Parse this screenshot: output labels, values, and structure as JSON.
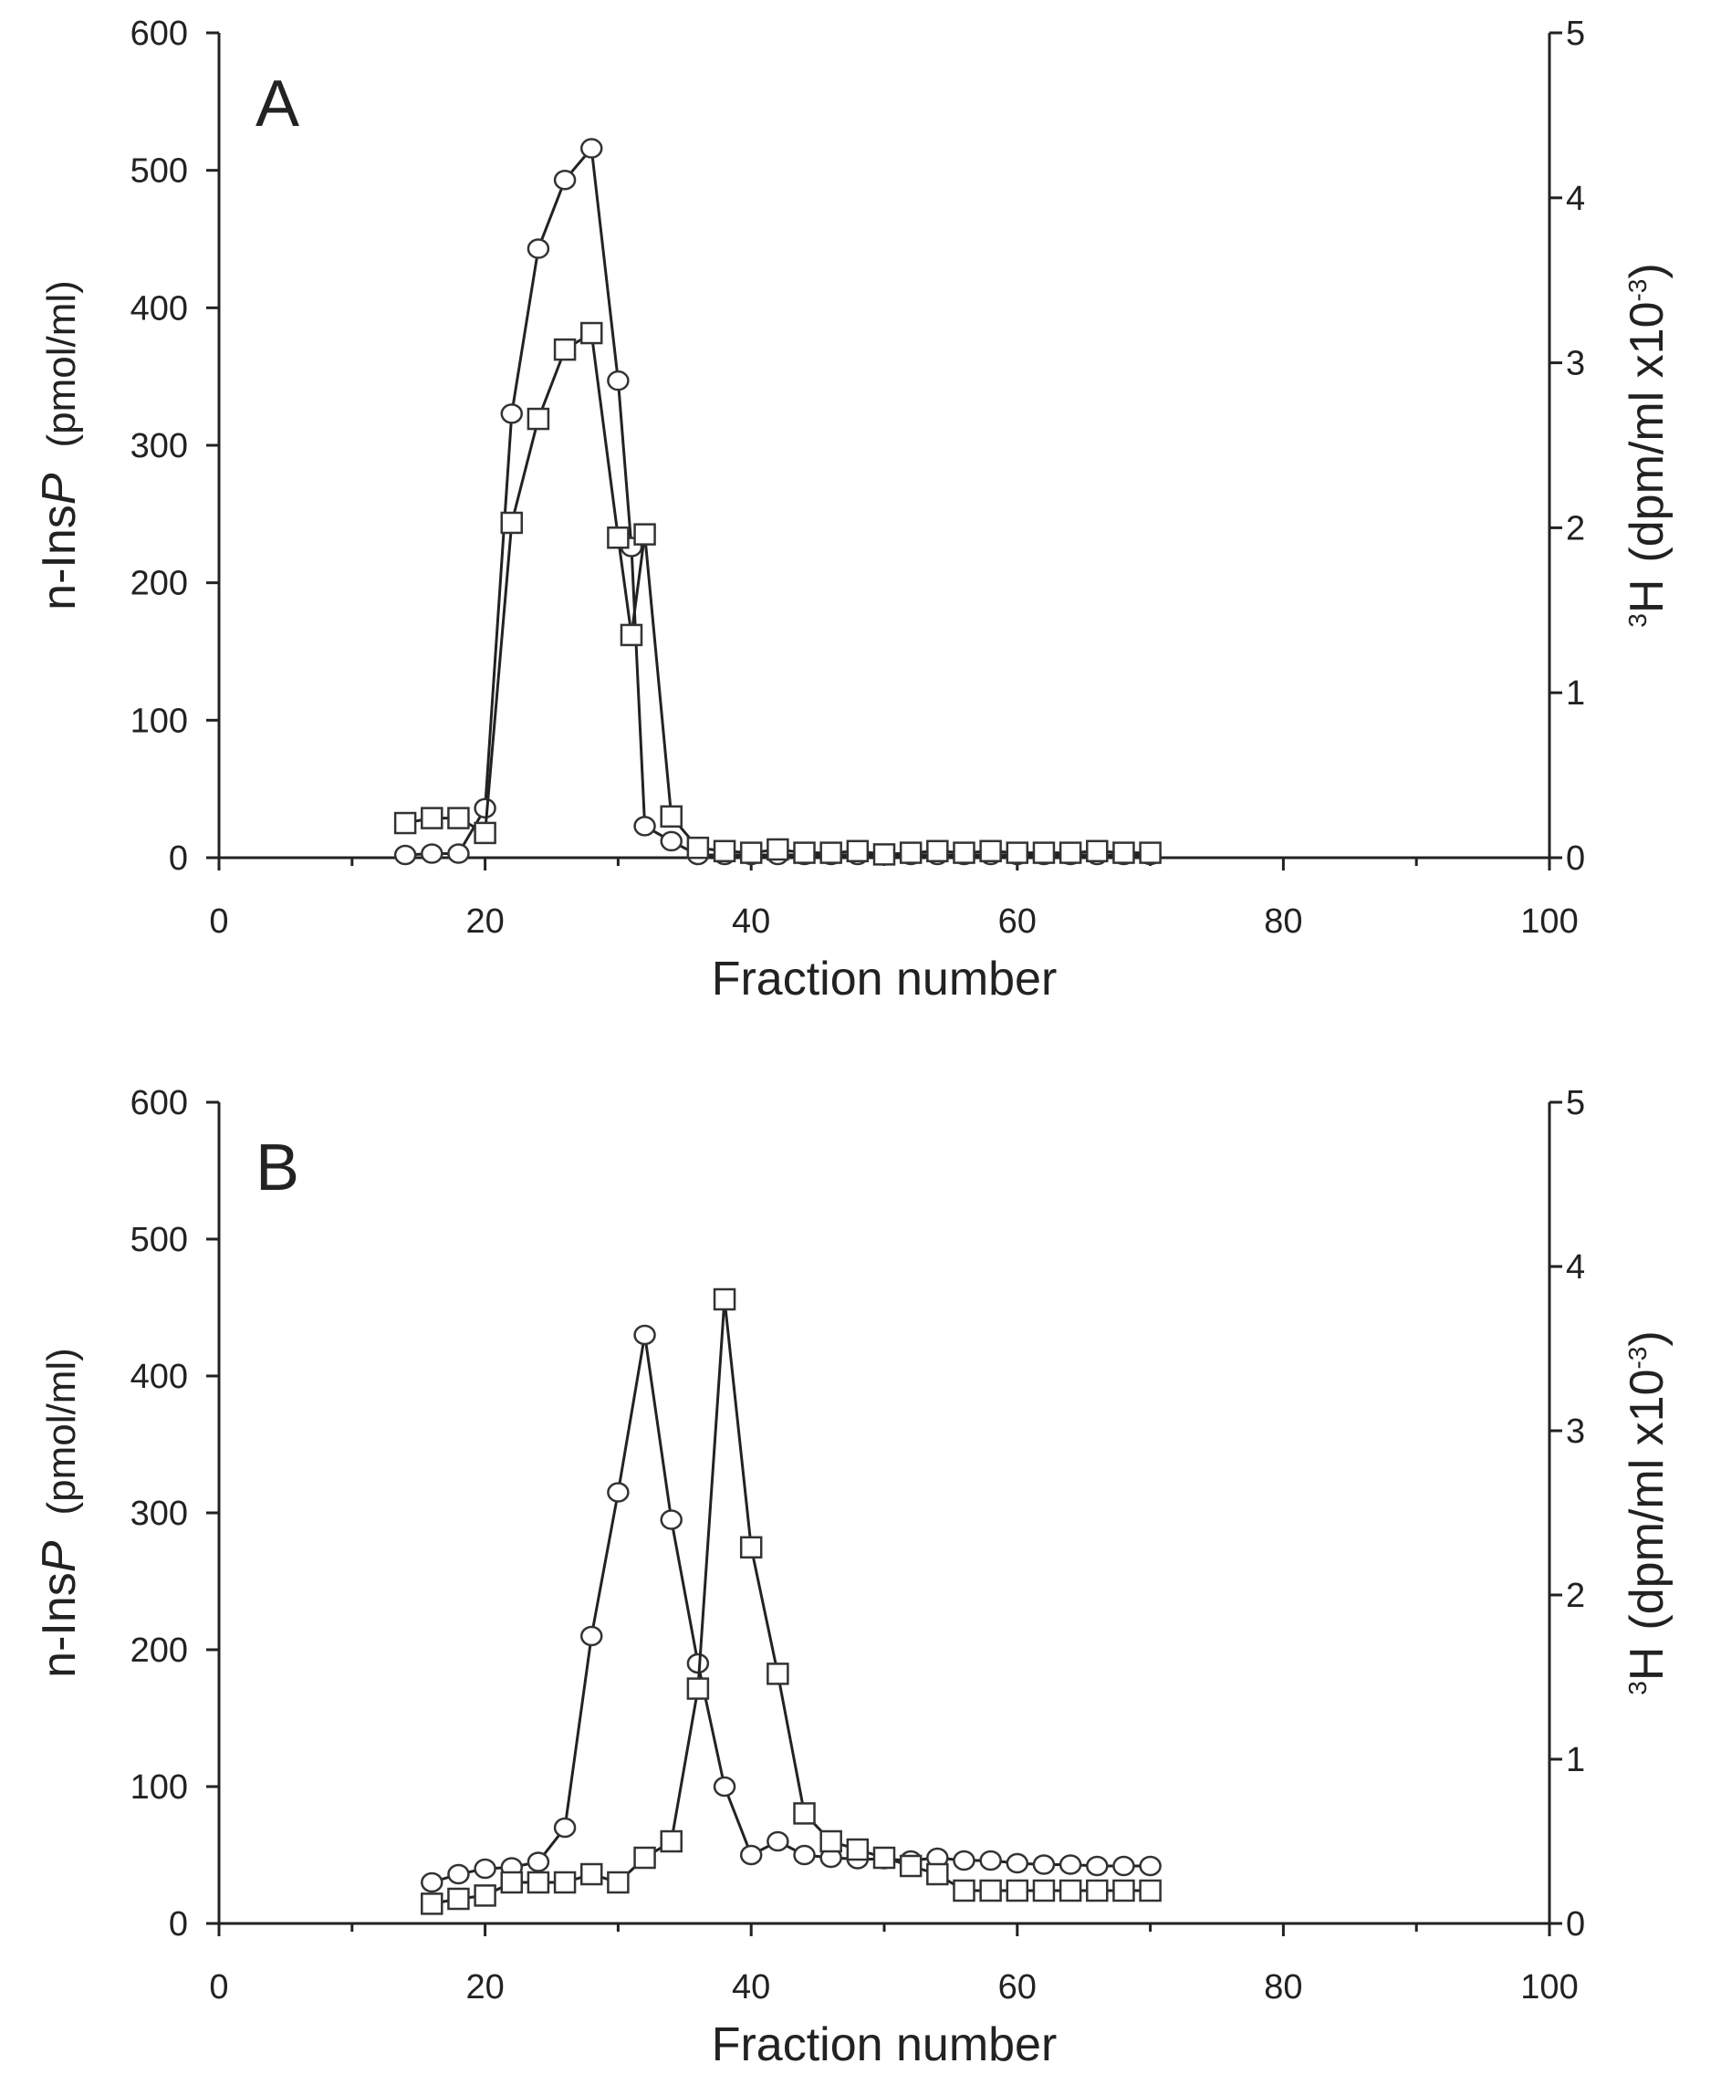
{
  "chart_data": [
    {
      "type": "line",
      "panel_label": "A",
      "xlabel": "Fraction number",
      "ylabel_left_prefix": "n-Ins",
      "ylabel_left_italic": "P",
      "ylabel_left_unit": "(pmol/ml)",
      "ylabel_right_sup": "3",
      "ylabel_right_main": "H",
      "ylabel_right_unit": "(dpm/ml x10",
      "ylabel_right_unit_sup": "-3",
      "ylabel_right_close": ")",
      "xlim": [
        0,
        100
      ],
      "ylim_left": [
        0,
        600
      ],
      "ylim_right": [
        0,
        5
      ],
      "x_ticks": [
        0,
        20,
        40,
        60,
        80,
        100
      ],
      "x_tick_labels": [
        "0",
        "20",
        "40",
        "60",
        "80",
        "100"
      ],
      "y_left_ticks": [
        0,
        100,
        200,
        300,
        400,
        500,
        600
      ],
      "y_left_tick_labels": [
        "0",
        "100",
        "200",
        "300",
        "400",
        "500",
        "600"
      ],
      "y_right_ticks": [
        0,
        1,
        2,
        3,
        4,
        5
      ],
      "y_right_tick_labels": [
        "0",
        "1",
        "2",
        "3",
        "4",
        "5"
      ],
      "series": [
        {
          "name": "n-InsP",
          "marker": "circle",
          "axis": "left",
          "x": [
            14,
            16,
            18,
            20,
            22,
            24,
            26,
            28,
            30,
            31,
            32,
            34,
            36,
            38,
            40,
            42,
            44,
            46,
            48,
            50,
            52,
            54,
            56,
            58,
            60,
            62,
            64,
            66,
            68,
            70
          ],
          "y": [
            2,
            3,
            3,
            36,
            323,
            443,
            493,
            516,
            347,
            226,
            23,
            12,
            2,
            2,
            2,
            2,
            2,
            2,
            2,
            2,
            2,
            2,
            2,
            2,
            2,
            2,
            2,
            2,
            2,
            2
          ]
        },
        {
          "name": "3H",
          "marker": "square",
          "axis": "right",
          "x": [
            14,
            16,
            18,
            20,
            22,
            24,
            26,
            28,
            30,
            31,
            32,
            34,
            36,
            38,
            40,
            42,
            44,
            46,
            48,
            50,
            52,
            54,
            56,
            58,
            60,
            62,
            64,
            66,
            68,
            70
          ],
          "y": [
            0.21,
            0.24,
            0.24,
            0.15,
            2.03,
            2.66,
            3.08,
            3.18,
            1.94,
            1.35,
            1.96,
            0.25,
            0.06,
            0.04,
            0.03,
            0.05,
            0.03,
            0.03,
            0.04,
            0.02,
            0.03,
            0.04,
            0.03,
            0.04,
            0.03,
            0.03,
            0.03,
            0.04,
            0.03,
            0.03
          ]
        }
      ]
    },
    {
      "type": "line",
      "panel_label": "B",
      "xlabel": "Fraction number",
      "ylabel_left_prefix": "n-Ins",
      "ylabel_left_italic": "P",
      "ylabel_left_unit": "(pmol/ml)",
      "ylabel_right_sup": "3",
      "ylabel_right_main": "H",
      "ylabel_right_unit": "(dpm/ml x10",
      "ylabel_right_unit_sup": "-3",
      "ylabel_right_close": ")",
      "xlim": [
        0,
        100
      ],
      "ylim_left": [
        0,
        600
      ],
      "ylim_right": [
        0,
        5
      ],
      "x_ticks": [
        0,
        20,
        40,
        60,
        80,
        100
      ],
      "x_tick_labels": [
        "0",
        "20",
        "40",
        "60",
        "80",
        "100"
      ],
      "y_left_ticks": [
        0,
        100,
        200,
        300,
        400,
        500,
        600
      ],
      "y_left_tick_labels": [
        "0",
        "100",
        "200",
        "300",
        "400",
        "500",
        "600"
      ],
      "y_right_ticks": [
        0,
        1,
        2,
        3,
        4,
        5
      ],
      "y_right_tick_labels": [
        "0",
        "1",
        "2",
        "3",
        "4",
        "5"
      ],
      "series": [
        {
          "name": "n-InsP",
          "marker": "circle",
          "axis": "left",
          "x": [
            16,
            18,
            20,
            22,
            24,
            26,
            28,
            30,
            32,
            34,
            36,
            38,
            40,
            42,
            44,
            46,
            48,
            50,
            52,
            54,
            56,
            58,
            60,
            62,
            64,
            66,
            68,
            70
          ],
          "y": [
            30,
            36,
            40,
            41,
            45,
            70,
            210,
            315,
            430,
            295,
            190,
            100,
            50,
            60,
            50,
            48,
            47,
            47,
            46,
            48,
            46,
            46,
            44,
            43,
            43,
            42,
            42,
            42
          ]
        },
        {
          "name": "3H",
          "marker": "square",
          "axis": "right",
          "x": [
            16,
            18,
            20,
            22,
            24,
            26,
            28,
            30,
            32,
            34,
            36,
            38,
            40,
            42,
            44,
            46,
            48,
            50,
            52,
            54,
            56,
            58,
            60,
            62,
            64,
            66,
            68,
            70
          ],
          "y": [
            0.12,
            0.15,
            0.17,
            0.25,
            0.25,
            0.25,
            0.3,
            0.25,
            0.4,
            0.5,
            1.43,
            3.8,
            2.29,
            1.52,
            0.67,
            0.5,
            0.45,
            0.4,
            0.35,
            0.3,
            0.2,
            0.2,
            0.2,
            0.2,
            0.2,
            0.2,
            0.2,
            0.2
          ]
        }
      ]
    }
  ]
}
